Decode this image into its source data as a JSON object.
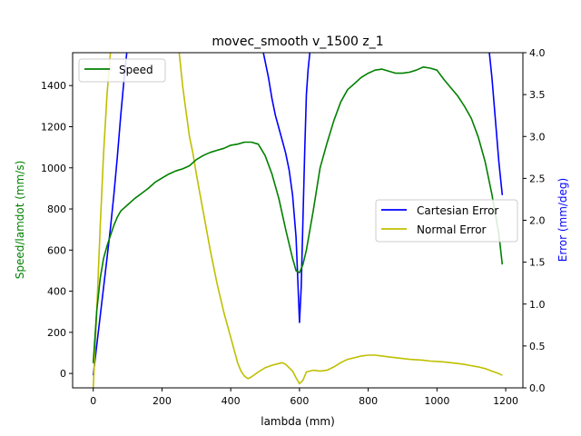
{
  "chart_data": {
    "type": "line",
    "title": "movec_smooth v_1500 z_1",
    "xlabel": "lambda (mm)",
    "ylabel_left": "Speed/lamdot (mm/s)",
    "ylabel_right": "Error (mm/deg)",
    "xlim": [
      -60,
      1250
    ],
    "ylim_left": [
      -70,
      1560
    ],
    "ylim_right": [
      0.0,
      4.0
    ],
    "x_ticks": [
      0,
      200,
      400,
      600,
      800,
      1000,
      1200
    ],
    "y_left_ticks": [
      0,
      200,
      400,
      600,
      800,
      1000,
      1200,
      1400
    ],
    "y_right_ticks": [
      0.0,
      0.5,
      1.0,
      1.5,
      2.0,
      2.5,
      3.0,
      3.5,
      4.0
    ],
    "grid": false,
    "colors": {
      "speed": "#008000",
      "cartesian_error": "#0000ff",
      "normal_error": "#bfbf00"
    },
    "legend_left": {
      "placement": "upper-left",
      "entries": [
        "Speed"
      ]
    },
    "legend_right": {
      "placement": "center-right",
      "entries": [
        "Cartesian Error",
        "Normal Error"
      ]
    },
    "series": [
      {
        "name": "Speed",
        "axis": "left",
        "x": [
          0,
          10,
          20,
          30,
          40,
          50,
          60,
          70,
          80,
          100,
          120,
          140,
          160,
          180,
          200,
          220,
          240,
          260,
          280,
          300,
          320,
          340,
          360,
          380,
          400,
          420,
          440,
          460,
          480,
          500,
          520,
          540,
          560,
          580,
          590,
          600,
          610,
          620,
          640,
          660,
          680,
          700,
          720,
          740,
          760,
          780,
          800,
          820,
          840,
          860,
          880,
          900,
          920,
          940,
          960,
          980,
          1000,
          1020,
          1040,
          1060,
          1080,
          1100,
          1120,
          1140,
          1160,
          1180,
          1190
        ],
        "values": [
          50,
          300,
          460,
          560,
          620,
          670,
          720,
          760,
          790,
          820,
          850,
          875,
          900,
          930,
          950,
          970,
          985,
          995,
          1010,
          1040,
          1060,
          1075,
          1085,
          1095,
          1110,
          1115,
          1125,
          1125,
          1115,
          1060,
          970,
          850,
          700,
          560,
          500,
          490,
          530,
          600,
          790,
          1000,
          1120,
          1230,
          1320,
          1380,
          1410,
          1440,
          1460,
          1475,
          1480,
          1470,
          1460,
          1460,
          1465,
          1475,
          1490,
          1485,
          1475,
          1430,
          1390,
          1350,
          1300,
          1240,
          1150,
          1030,
          870,
          680,
          530
        ]
      },
      {
        "name": "Cartesian Error",
        "axis": "right",
        "x": [
          0,
          10,
          20,
          30,
          40,
          50,
          60,
          70,
          80,
          90,
          100,
          480,
          490,
          500,
          510,
          520,
          530,
          540,
          550,
          560,
          570,
          580,
          590,
          595,
          600,
          605,
          610,
          615,
          620,
          625,
          630,
          640,
          1150,
          1160,
          1170,
          1180,
          1190
        ],
        "values": [
          0.15,
          0.5,
          0.85,
          1.2,
          1.55,
          1.9,
          2.3,
          2.75,
          3.25,
          3.7,
          4.1,
          4.2,
          4.1,
          3.9,
          3.7,
          3.45,
          3.25,
          3.1,
          2.95,
          2.8,
          2.6,
          2.3,
          1.8,
          1.3,
          0.78,
          1.2,
          2.0,
          2.8,
          3.5,
          3.8,
          4.0,
          4.2,
          4.1,
          3.7,
          3.2,
          2.7,
          2.3
        ]
      },
      {
        "name": "Normal Error",
        "axis": "right",
        "x": [
          0,
          10,
          20,
          30,
          40,
          50,
          60,
          240,
          250,
          260,
          270,
          280,
          290,
          300,
          320,
          340,
          360,
          380,
          400,
          410,
          420,
          430,
          440,
          450,
          460,
          480,
          500,
          520,
          540,
          550,
          560,
          580,
          590,
          600,
          610,
          620,
          640,
          660,
          680,
          700,
          720,
          740,
          760,
          780,
          800,
          820,
          840,
          860,
          880,
          900,
          920,
          940,
          960,
          980,
          1000,
          1020,
          1040,
          1060,
          1080,
          1100,
          1120,
          1140,
          1160,
          1180,
          1190
        ],
        "values": [
          0.0,
          0.9,
          1.9,
          2.8,
          3.5,
          4.0,
          4.3,
          4.3,
          4.0,
          3.6,
          3.3,
          3.0,
          2.8,
          2.55,
          2.1,
          1.65,
          1.25,
          0.9,
          0.6,
          0.45,
          0.3,
          0.2,
          0.14,
          0.11,
          0.13,
          0.19,
          0.24,
          0.27,
          0.29,
          0.3,
          0.28,
          0.2,
          0.12,
          0.05,
          0.09,
          0.19,
          0.21,
          0.2,
          0.21,
          0.25,
          0.3,
          0.34,
          0.36,
          0.38,
          0.39,
          0.39,
          0.38,
          0.37,
          0.36,
          0.35,
          0.34,
          0.335,
          0.33,
          0.32,
          0.315,
          0.31,
          0.3,
          0.29,
          0.28,
          0.265,
          0.25,
          0.23,
          0.2,
          0.17,
          0.15
        ]
      }
    ]
  }
}
